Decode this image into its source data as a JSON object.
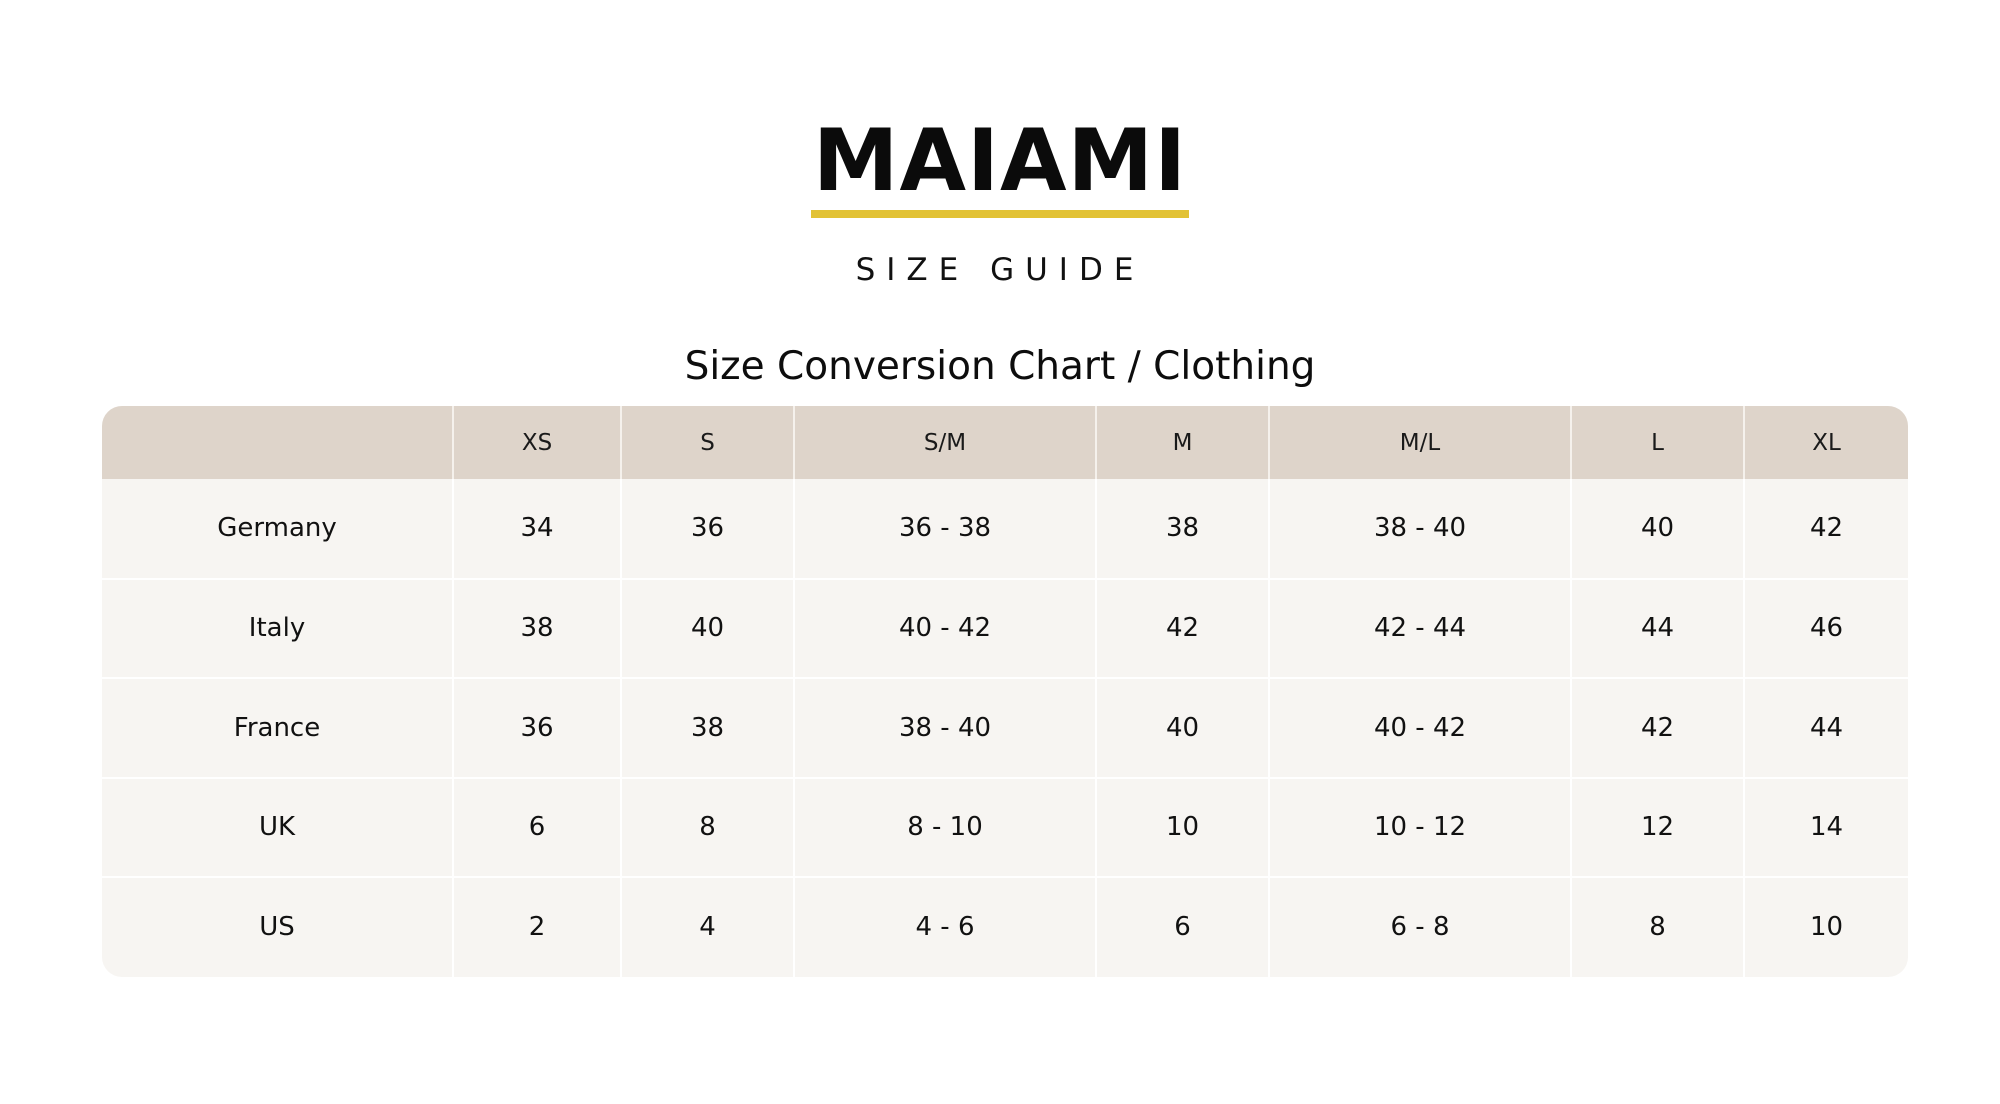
{
  "brand": {
    "logo_text": "MAIAMI",
    "subtitle": "SIZE GUIDE",
    "accent_color": "#e2c235"
  },
  "chart": {
    "title": "Size Conversion Chart / Clothing"
  },
  "table": {
    "header_color": "#ded4ca",
    "body_color": "#f7f5f2",
    "columns": [
      "",
      "XS",
      "S",
      "S/M",
      "M",
      "M/L",
      "L",
      "XL"
    ],
    "rows": [
      [
        "Germany",
        "34",
        "36",
        "36 - 38",
        "38",
        "38 - 40",
        "40",
        "42"
      ],
      [
        "Italy",
        "38",
        "40",
        "40 - 42",
        "42",
        "42 - 44",
        "44",
        "46"
      ],
      [
        "France",
        "36",
        "38",
        "38 - 40",
        "40",
        "40 - 42",
        "42",
        "44"
      ],
      [
        "UK",
        "6",
        "8",
        "8 - 10",
        "10",
        "10 - 12",
        "12",
        "14"
      ],
      [
        "US",
        "2",
        "4",
        "4 - 6",
        "6",
        "6 - 8",
        "8",
        "10"
      ]
    ]
  }
}
